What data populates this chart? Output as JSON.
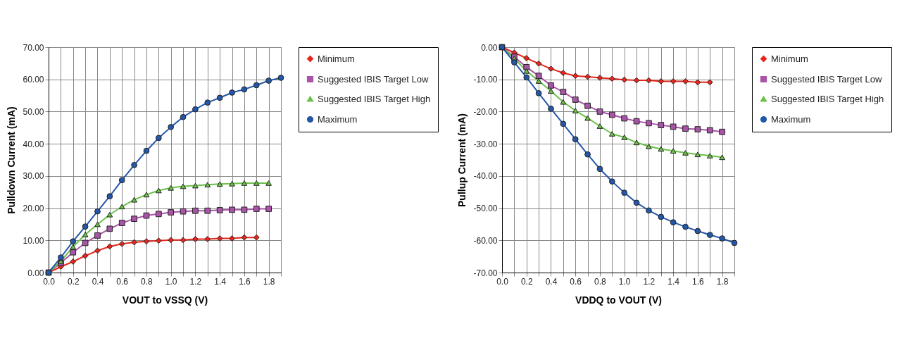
{
  "chart_data": [
    {
      "type": "line",
      "xlabel": "VOUT to VSSQ (V)",
      "ylabel": "Pulldown Current (mA)",
      "xlim": [
        0,
        1.9
      ],
      "ylim": [
        0,
        70
      ],
      "xticks": [
        {
          "value": 0,
          "label": "0.0"
        },
        {
          "value": 0.1,
          "label": null
        },
        {
          "value": 0.2,
          "label": "0.2"
        },
        {
          "value": 0.3,
          "label": null
        },
        {
          "value": 0.4,
          "label": "0.4"
        },
        {
          "value": 0.5,
          "label": null
        },
        {
          "value": 0.6,
          "label": "0.6"
        },
        {
          "value": 0.7,
          "label": null
        },
        {
          "value": 0.8,
          "label": "0.8"
        },
        {
          "value": 0.9,
          "label": null
        },
        {
          "value": 1,
          "label": "1.0"
        },
        {
          "value": 1.1,
          "label": null
        },
        {
          "value": 1.2,
          "label": "1.2"
        },
        {
          "value": 1.3,
          "label": null
        },
        {
          "value": 1.4,
          "label": "1.4"
        },
        {
          "value": 1.5,
          "label": null
        },
        {
          "value": 1.6,
          "label": "1.6"
        },
        {
          "value": 1.7,
          "label": null
        },
        {
          "value": 1.8,
          "label": "1.8"
        },
        {
          "value": 1.9,
          "label": null
        }
      ],
      "yticks": [
        {
          "value": 0,
          "label": "0.00"
        },
        {
          "value": 10,
          "label": "10.00"
        },
        {
          "value": 20,
          "label": "20.00"
        },
        {
          "value": 30,
          "label": "30.00"
        },
        {
          "value": 40,
          "label": "40.00"
        },
        {
          "value": 50,
          "label": "50.00"
        },
        {
          "value": 60,
          "label": "60.00"
        },
        {
          "value": 70,
          "label": "70.00"
        }
      ],
      "grid": true,
      "legend": "right",
      "line_style": "solid",
      "x": [
        0,
        0.1,
        0.2,
        0.3,
        0.4,
        0.5,
        0.6,
        0.7,
        0.8,
        0.9,
        1,
        1.1,
        1.2,
        1.3,
        1.4,
        1.5,
        1.6,
        1.7,
        1.8,
        1.9
      ],
      "series": [
        {
          "name": "Minimum",
          "color": "#e8261c",
          "marker": "diamond",
          "values": [
            0,
            1.8,
            3.4,
            5.2,
            6.8,
            8.1,
            8.9,
            9.4,
            9.7,
            9.9,
            10.1,
            10.1,
            10.4,
            10.4,
            10.6,
            10.6,
            10.9,
            10.9,
            null,
            null
          ]
        },
        {
          "name": "Suggested IBIS Target Low",
          "color": "#a855a8",
          "marker": "square",
          "values": [
            0,
            3,
            6.3,
            9.2,
            11.5,
            13.6,
            15.4,
            16.7,
            17.7,
            18.2,
            18.7,
            19,
            19.2,
            19.2,
            19.4,
            19.5,
            19.5,
            19.8,
            19.8,
            null
          ]
        },
        {
          "name": "Suggested IBIS Target High",
          "color": "#6cc04a",
          "marker": "triangle",
          "values": [
            0,
            3.5,
            8,
            11.8,
            15,
            18,
            20.5,
            22.6,
            24.2,
            25.5,
            26.3,
            26.8,
            27,
            27.3,
            27.5,
            27.6,
            27.8,
            27.8,
            27.8,
            null
          ]
        },
        {
          "name": "Maximum",
          "color": "#2457a8",
          "marker": "circle",
          "values": [
            0,
            4.7,
            9.7,
            14.3,
            19,
            23.7,
            28.7,
            33.4,
            37.8,
            41.8,
            45.2,
            48.3,
            50.7,
            52.8,
            54.3,
            55.9,
            56.9,
            58.2,
            59.6,
            60.5
          ]
        }
      ]
    },
    {
      "type": "line",
      "xlabel": "VDDQ to VOUT (V)",
      "ylabel": "Pullup Current (mA)",
      "xlim": [
        0,
        1.9
      ],
      "ylim": [
        -70,
        0
      ],
      "xticks": [
        {
          "value": 0,
          "label": "0.0"
        },
        {
          "value": 0.1,
          "label": null
        },
        {
          "value": 0.2,
          "label": "0.2"
        },
        {
          "value": 0.3,
          "label": null
        },
        {
          "value": 0.4,
          "label": "0.4"
        },
        {
          "value": 0.5,
          "label": null
        },
        {
          "value": 0.6,
          "label": "0.6"
        },
        {
          "value": 0.7,
          "label": null
        },
        {
          "value": 0.8,
          "label": "0.8"
        },
        {
          "value": 0.9,
          "label": null
        },
        {
          "value": 1,
          "label": "1.0"
        },
        {
          "value": 1.1,
          "label": null
        },
        {
          "value": 1.2,
          "label": "1.2"
        },
        {
          "value": 1.3,
          "label": null
        },
        {
          "value": 1.4,
          "label": "1.4"
        },
        {
          "value": 1.5,
          "label": null
        },
        {
          "value": 1.6,
          "label": "1.6"
        },
        {
          "value": 1.7,
          "label": null
        },
        {
          "value": 1.8,
          "label": "1.8"
        },
        {
          "value": 1.9,
          "label": null
        }
      ],
      "yticks": [
        {
          "value": -70,
          "label": "-70.00"
        },
        {
          "value": -60,
          "label": "-60.00"
        },
        {
          "value": -50,
          "label": "-50.00"
        },
        {
          "value": -40,
          "label": "-40.00"
        },
        {
          "value": -30,
          "label": "-30.00"
        },
        {
          "value": -20,
          "label": "-20.00"
        },
        {
          "value": -10,
          "label": "-10.00"
        },
        {
          "value": 0,
          "label": "0.00"
        }
      ],
      "grid": true,
      "legend": "right",
      "line_style": "solid",
      "x": [
        0,
        0.1,
        0.2,
        0.3,
        0.4,
        0.5,
        0.6,
        0.7,
        0.8,
        0.9,
        1,
        1.1,
        1.2,
        1.3,
        1.4,
        1.5,
        1.6,
        1.7,
        1.8,
        1.9
      ],
      "series": [
        {
          "name": "Minimum",
          "color": "#e8261c",
          "marker": "diamond",
          "values": [
            0,
            -1.7,
            -3.4,
            -5.1,
            -6.7,
            -8,
            -8.9,
            -9.2,
            -9.5,
            -9.8,
            -10.1,
            -10.3,
            -10.3,
            -10.6,
            -10.6,
            -10.6,
            -10.9,
            -10.9,
            null,
            null
          ]
        },
        {
          "name": "Suggested IBIS Target Low",
          "color": "#a855a8",
          "marker": "square",
          "values": [
            0,
            -3,
            -6.2,
            -8.9,
            -11.9,
            -13.9,
            -16.3,
            -18.2,
            -20,
            -21,
            -22.1,
            -23,
            -23.6,
            -24.2,
            -24.7,
            -25.3,
            -25.5,
            -25.8,
            -26.3,
            null
          ]
        },
        {
          "name": "Suggested IBIS Target High",
          "color": "#6cc04a",
          "marker": "triangle",
          "values": [
            0,
            -3.5,
            -7.4,
            -10.5,
            -13.6,
            -17,
            -19.7,
            -22,
            -24.5,
            -26.9,
            -28,
            -29.6,
            -30.8,
            -31.6,
            -32.2,
            -32.8,
            -33.3,
            -33.7,
            -34.2,
            null
          ]
        },
        {
          "name": "Maximum",
          "color": "#2457a8",
          "marker": "circle",
          "values": [
            0,
            -4.7,
            -9.4,
            -14.3,
            -19.1,
            -23.8,
            -28.6,
            -33.3,
            -37.8,
            -41.7,
            -45.2,
            -48.3,
            -50.7,
            -52.7,
            -54.4,
            -55.8,
            -57.1,
            -58.3,
            -59.4,
            -60.8
          ]
        }
      ]
    }
  ]
}
